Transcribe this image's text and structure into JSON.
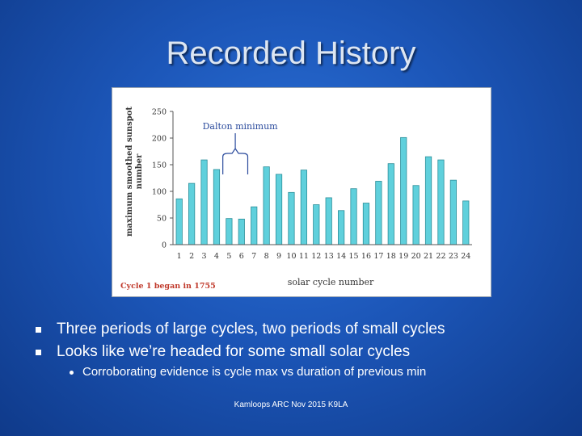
{
  "slide": {
    "title": "Recorded History",
    "bullets": [
      "Three periods of large cycles, two periods of small cycles",
      "Looks like we’re headed for some small solar cycles"
    ],
    "sub_bullets": [
      "Corroborating evidence is cycle max vs duration of previous min"
    ],
    "footer": "Kamloops ARC Nov 2015 K9LA"
  },
  "colors": {
    "bar_fill": "#5fd0dc",
    "bar_stroke": "#2d8f9a",
    "annotation_line": "#2a4a9c",
    "note_text": "#c0392b"
  },
  "chart_data": {
    "type": "bar",
    "title": "",
    "xlabel": "solar cycle number",
    "ylabel": "maximum smoothed sunspot number",
    "ylim": [
      0,
      250
    ],
    "yticks": [
      0,
      50,
      100,
      150,
      200,
      250
    ],
    "categories": [
      "1",
      "2",
      "3",
      "4",
      "5",
      "6",
      "7",
      "8",
      "9",
      "10",
      "11",
      "12",
      "13",
      "14",
      "15",
      "16",
      "17",
      "18",
      "19",
      "20",
      "21",
      "22",
      "23",
      "24"
    ],
    "values": [
      86,
      115,
      159,
      141,
      49,
      48,
      71,
      146,
      132,
      98,
      140,
      75,
      88,
      64,
      105,
      78,
      119,
      152,
      201,
      111,
      165,
      159,
      121,
      82
    ],
    "grid": false,
    "annotations": [
      {
        "text": "Dalton minimum",
        "cycles": [
          "5",
          "6"
        ]
      }
    ],
    "note": "Cycle 1 began in 1755"
  }
}
